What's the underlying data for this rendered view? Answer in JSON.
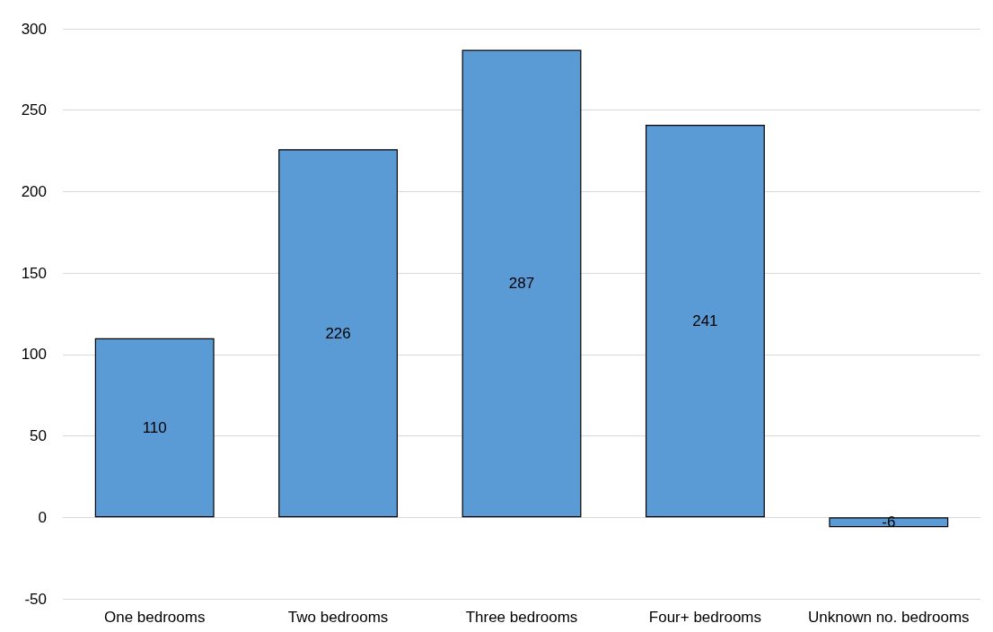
{
  "chart_data": {
    "type": "bar",
    "categories": [
      "One bedrooms",
      "Two bedrooms",
      "Three bedrooms",
      "Four+ bedrooms",
      "Unknown no. bedrooms"
    ],
    "values": [
      110,
      226,
      287,
      241,
      -6
    ],
    "color": "#5b9bd5",
    "ylim": [
      -50,
      300
    ],
    "yticks": [
      -50,
      0,
      50,
      100,
      150,
      200,
      250,
      300
    ],
    "grid": "y",
    "data_labels": true
  }
}
